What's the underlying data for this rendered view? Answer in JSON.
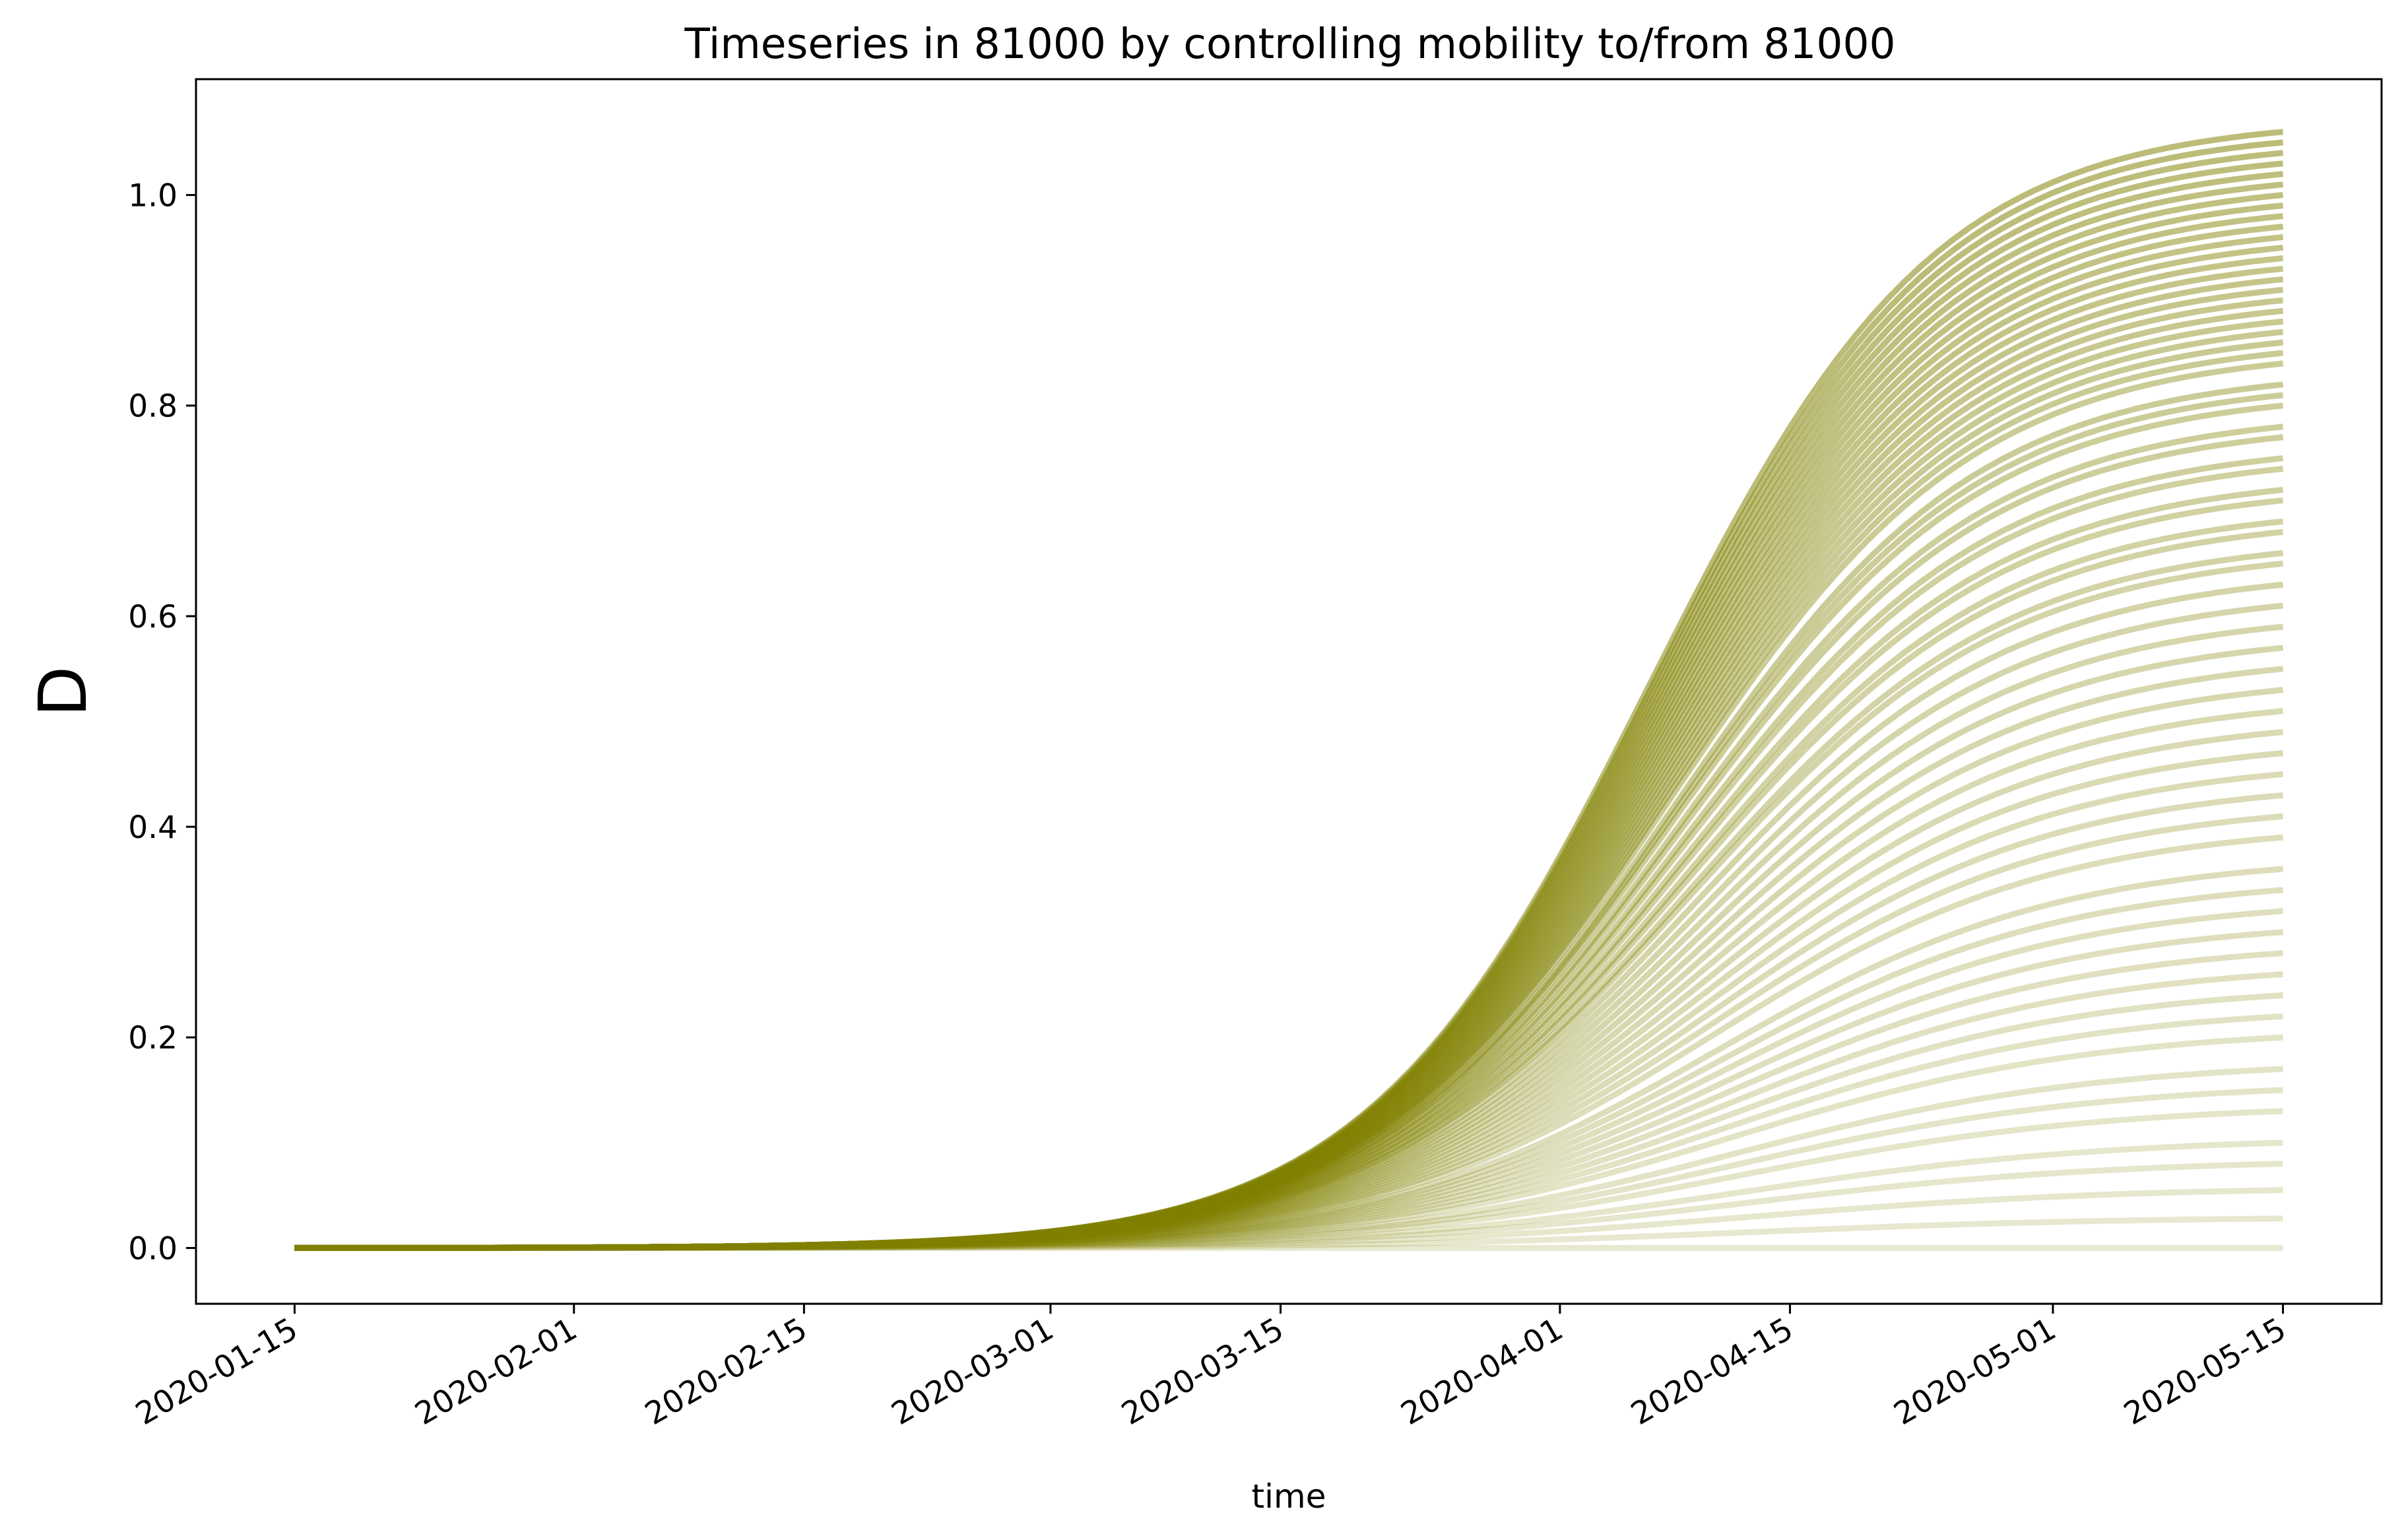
{
  "chart_data": {
    "type": "line",
    "title": "Timeseries in 81000 by controlling mobility to/from 81000",
    "xlabel": "time",
    "ylabel": "D",
    "x_start": "2020-01-15",
    "x_end": "2020-05-15",
    "xlim": [
      "2020-01-09",
      "2020-05-21"
    ],
    "ylim": [
      -0.053,
      1.11
    ],
    "x_ticks": [
      "2020-01-15",
      "2020-02-01",
      "2020-02-15",
      "2020-03-01",
      "2020-03-15",
      "2020-04-01",
      "2020-04-15",
      "2020-05-01",
      "2020-05-15"
    ],
    "y_ticks": [
      0.0,
      0.2,
      0.4,
      0.6,
      0.8,
      1.0
    ],
    "y_tick_labels": [
      "0.0",
      "0.2",
      "0.4",
      "0.6",
      "0.8",
      "1.0"
    ],
    "grid": false,
    "legend": "none",
    "line_color": "#808000",
    "series_final_values": [
      1.06,
      1.05,
      1.04,
      1.03,
      1.02,
      1.01,
      1.0,
      0.99,
      0.98,
      0.97,
      0.96,
      0.95,
      0.94,
      0.93,
      0.92,
      0.91,
      0.9,
      0.89,
      0.88,
      0.87,
      0.86,
      0.85,
      0.84,
      0.82,
      0.81,
      0.8,
      0.78,
      0.77,
      0.75,
      0.74,
      0.72,
      0.71,
      0.69,
      0.68,
      0.66,
      0.65,
      0.63,
      0.61,
      0.59,
      0.57,
      0.55,
      0.53,
      0.51,
      0.49,
      0.47,
      0.45,
      0.43,
      0.41,
      0.39,
      0.36,
      0.34,
      0.32,
      0.3,
      0.28,
      0.26,
      0.24,
      0.22,
      0.2,
      0.17,
      0.15,
      0.13,
      0.1,
      0.08,
      0.055,
      0.028,
      0.0
    ]
  }
}
